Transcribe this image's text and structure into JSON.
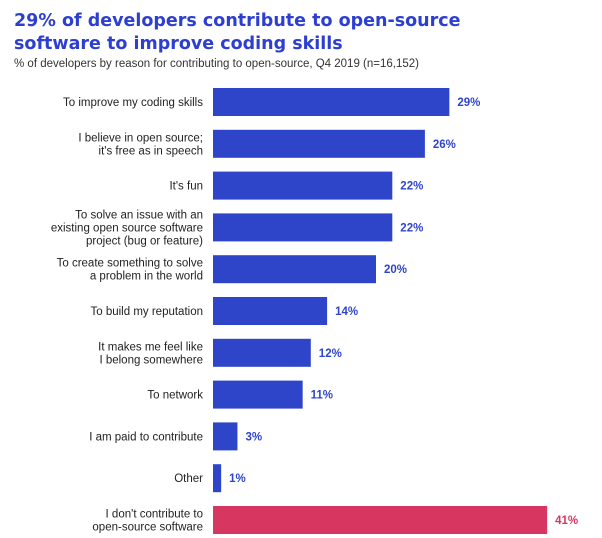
{
  "title_line1": "29% of developers contribute to open-source",
  "title_line2": "software to improve coding skills",
  "subtitle": "% of developers by reason for contributing to open-source, Q4 2019 (n=16,152)",
  "colors": {
    "title": "#2d3fd1",
    "bar": "#2f45c9",
    "highlight_bar": "#d6365f",
    "value_text": "#2f45c9",
    "highlight_value_text": "#d6365f"
  },
  "chart_data": {
    "type": "bar",
    "orientation": "horizontal",
    "title": "29% of developers contribute to open-source software to improve coding skills",
    "subtitle": "% of developers by reason for contributing to open-source, Q4 2019 (n=16,152)",
    "xlim": [
      0,
      41
    ],
    "grid": false,
    "categories": [
      [
        "To improve my coding skills"
      ],
      [
        "I believe in open source;",
        "it's free as in speech"
      ],
      [
        "It's fun"
      ],
      [
        "To solve an issue with an",
        "existing open source software",
        "project (bug or feature)"
      ],
      [
        "To create something to solve",
        "a problem in the world"
      ],
      [
        "To build my reputation"
      ],
      [
        "It makes me feel like",
        "I belong somewhere"
      ],
      [
        "To network"
      ],
      [
        "I am paid to contribute"
      ],
      [
        "Other"
      ],
      [
        "I don't contribute to",
        "open-source software"
      ]
    ],
    "values": [
      29,
      26,
      22,
      22,
      20,
      14,
      12,
      11,
      3,
      1,
      41
    ],
    "value_labels": [
      "29%",
      "26%",
      "22%",
      "22%",
      "20%",
      "14%",
      "12%",
      "11%",
      "3%",
      "1%",
      "41%"
    ],
    "highlight_index": 10
  }
}
